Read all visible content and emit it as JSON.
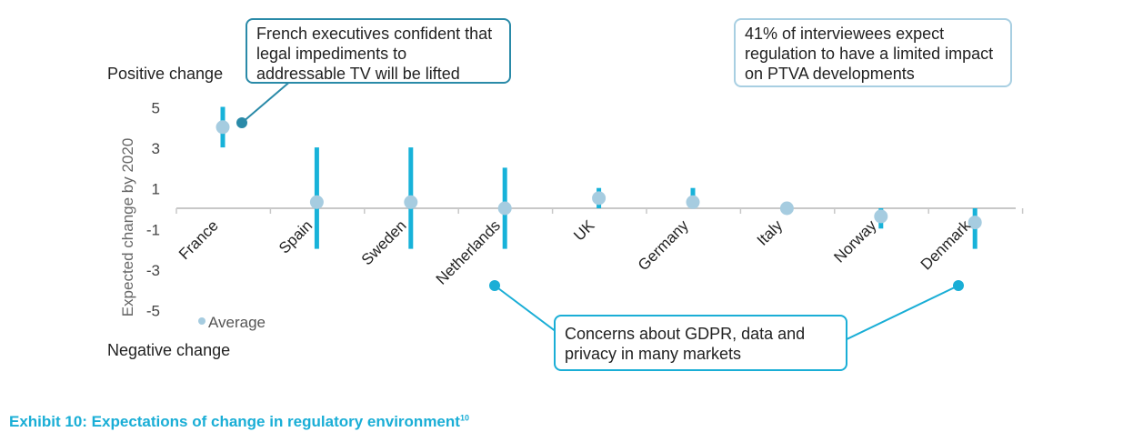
{
  "chart_data": {
    "type": "scatter",
    "title": "",
    "xlabel": "",
    "ylabel": "Expected change by 2020",
    "ylim": [
      -5,
      5
    ],
    "yticks": [
      5,
      3,
      1,
      -1,
      -3,
      -5
    ],
    "categories": [
      "France",
      "Spain",
      "Sweden",
      "Netherlands",
      "UK",
      "Germany",
      "Italy",
      "Norway",
      "Denmark"
    ],
    "series": [
      {
        "name": "Average",
        "values": [
          4.0,
          0.3,
          0.3,
          0.0,
          0.5,
          0.3,
          0.0,
          -0.4,
          -0.7
        ]
      }
    ],
    "ranges": [
      {
        "min": 3,
        "max": 5
      },
      {
        "min": -2,
        "max": 3
      },
      {
        "min": -2,
        "max": 3
      },
      {
        "min": -2,
        "max": 2
      },
      {
        "min": 0,
        "max": 1
      },
      {
        "min": 0,
        "max": 1
      },
      {
        "min": 0,
        "max": 0
      },
      {
        "min": -1,
        "max": 0
      },
      {
        "min": -2,
        "max": 0
      }
    ],
    "legend": {
      "label": "Average",
      "placement": "bottom-left"
    }
  },
  "labels": {
    "positive": "Positive change",
    "negative": "Negative change"
  },
  "annotations": {
    "french": "French executives confident that legal impediments to addressable TV will be lifted",
    "interviewees": "41% of interviewees expect regulation to have a limited impact on PTVA developments",
    "gdpr": "Concerns about GDPR, data and privacy in many markets"
  },
  "exhibit": {
    "title": "Exhibit 10: Expectations of change in regulatory environment",
    "footnote": "10"
  },
  "colors": {
    "range_bar": "#17b2d9",
    "average_dot": "#a6cce0",
    "axis": "#c8c8c8",
    "title": "#1aaed6",
    "callout_dark": "#2a8aa8",
    "callout_light": "#a8cfe2",
    "callout_cyan": "#1aaed6"
  }
}
